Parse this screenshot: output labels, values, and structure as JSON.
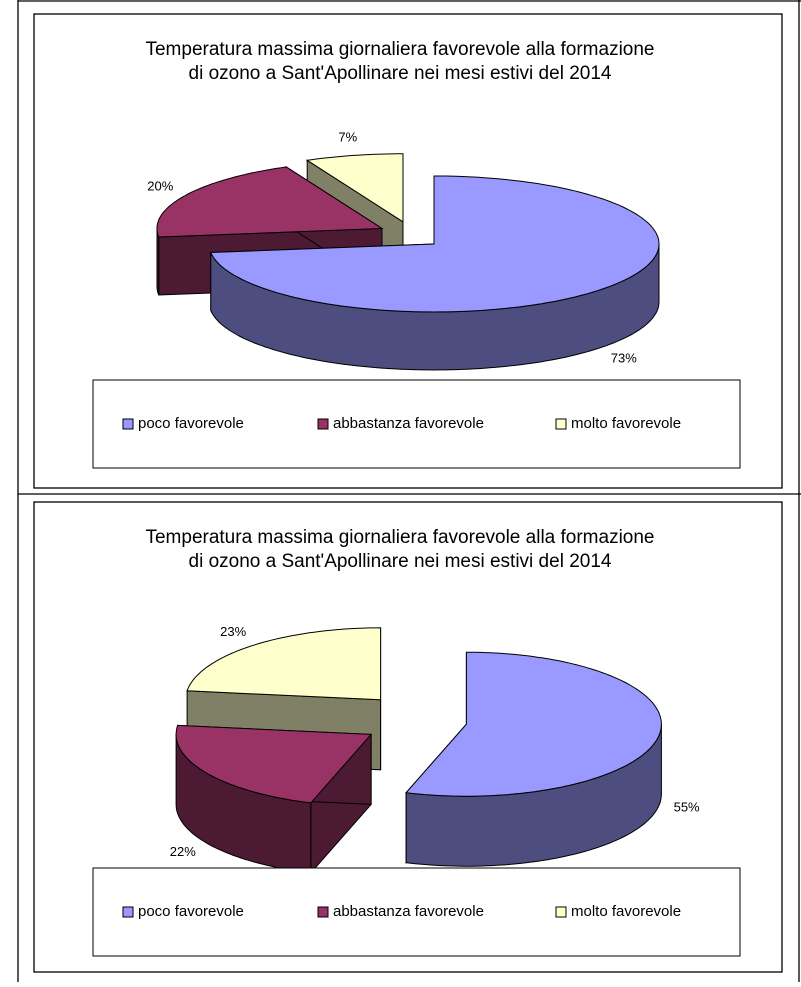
{
  "chart_data": [
    {
      "type": "pie",
      "title": [
        "Temperatura massima giornaliera favorevole alla formazione",
        "di ozono a Sant'Apollinare nei mesi estivi del 2014"
      ],
      "categories": [
        "poco favorevole",
        "abbastanza favorevole",
        "molto favorevole"
      ],
      "values": [
        73,
        20,
        7
      ],
      "value_labels": [
        "73%",
        "20%",
        "7%"
      ],
      "colors": [
        "#9999ff",
        "#993366",
        "#ffffcc"
      ],
      "legend": "bottom"
    },
    {
      "type": "pie",
      "title": [
        "Temperatura massima giornaliera favorevole alla formazione",
        "di ozono a Sant'Apollinare nei mesi estivi del 2014"
      ],
      "categories": [
        "poco favorevole",
        "abbastanza favorevole",
        "molto favorevole"
      ],
      "values": [
        55,
        22,
        23
      ],
      "value_labels": [
        "55%",
        "22%",
        "23%"
      ],
      "colors": [
        "#9999ff",
        "#993366",
        "#ffffcc"
      ],
      "legend": "bottom"
    }
  ]
}
